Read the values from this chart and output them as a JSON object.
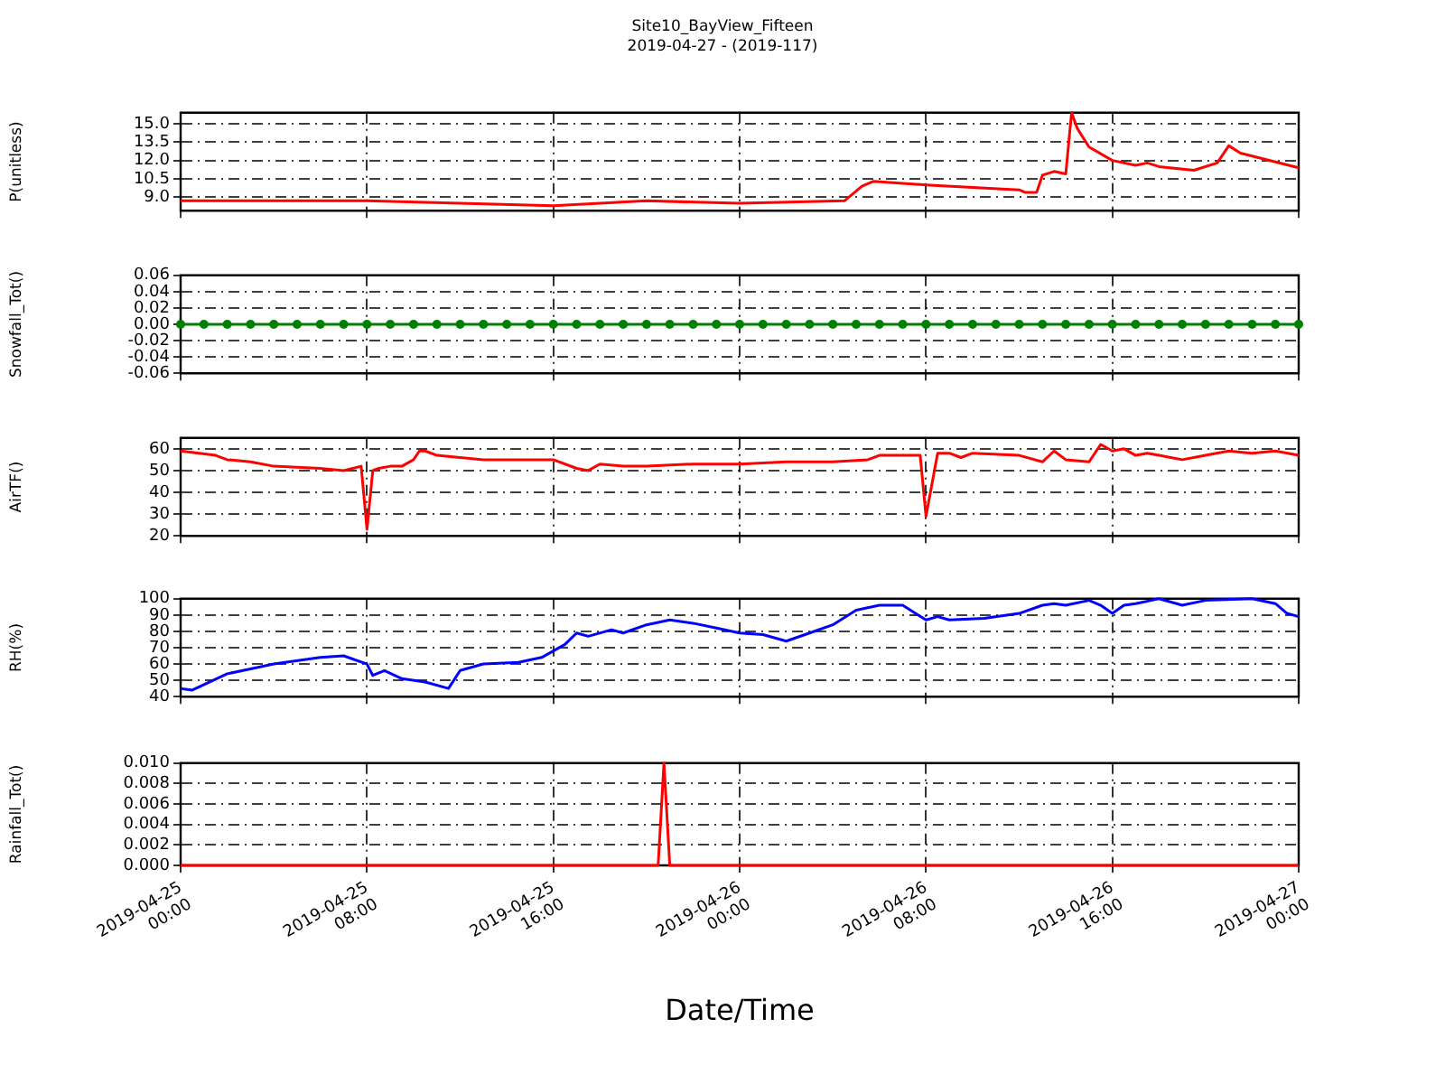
{
  "chart_data": [
    {
      "type": "line",
      "title": "Site10_BayView_Fifteen",
      "subtitle": "2019-04-27 - (2019-117)",
      "ylabel": "P(unitless)",
      "color": "#ff0000",
      "marker": "none",
      "line_style": "solid",
      "grid": true,
      "legend": false,
      "tick_labels": "y",
      "x": [
        "2019-04-25T00:00",
        "2019-04-25T08:00",
        "2019-04-25T12:00",
        "2019-04-25T16:00",
        "2019-04-25T20:00",
        "2019-04-26T00:00",
        "2019-04-26T04:30",
        "2019-04-26T05:15",
        "2019-04-26T05:45",
        "2019-04-26T08:00",
        "2019-04-26T12:00",
        "2019-04-26T12:15",
        "2019-04-26T12:45",
        "2019-04-26T13:00",
        "2019-04-26T13:30",
        "2019-04-26T14:00",
        "2019-04-26T14:15",
        "2019-04-26T14:30",
        "2019-04-26T15:00",
        "2019-04-26T16:00",
        "2019-04-26T17:00",
        "2019-04-26T17:30",
        "2019-04-26T18:00",
        "2019-04-26T19:30",
        "2019-04-26T20:30",
        "2019-04-26T21:00",
        "2019-04-26T21:30",
        "2019-04-27T00:00"
      ],
      "values": [
        8.7,
        8.7,
        8.5,
        8.3,
        8.7,
        8.5,
        8.7,
        9.9,
        10.3,
        10.0,
        9.6,
        9.4,
        9.4,
        10.8,
        11.1,
        10.9,
        15.9,
        14.6,
        13.1,
        12.0,
        11.6,
        11.8,
        11.5,
        11.2,
        11.8,
        13.2,
        12.6,
        11.4
      ],
      "xlim": [
        "2019-04-25T00:00",
        "2019-04-27T00:00"
      ],
      "xticks": [
        {
          "value": "2019-04-25T00:00",
          "label": null
        },
        {
          "value": "2019-04-25T08:00",
          "label": null
        },
        {
          "value": "2019-04-25T16:00",
          "label": null
        },
        {
          "value": "2019-04-26T00:00",
          "label": null
        },
        {
          "value": "2019-04-26T08:00",
          "label": null
        },
        {
          "value": "2019-04-26T16:00",
          "label": null
        },
        {
          "value": "2019-04-27T00:00",
          "label": null
        }
      ],
      "ylim": [
        7.9,
        15.9
      ],
      "yticks": [
        {
          "value": 9,
          "label": "9.0"
        },
        10.5,
        {
          "value": 12,
          "label": "12.0"
        },
        13.5,
        {
          "value": 15,
          "label": "15.0"
        }
      ]
    },
    {
      "type": "line",
      "ylabel": "Snowfall_Tot()",
      "color": "#008000",
      "marker": "circle",
      "line_style": "solid",
      "grid": true,
      "legend": false,
      "tick_labels": "y",
      "x": [
        "2019-04-25T00:00",
        "2019-04-25T01:00",
        "2019-04-25T02:00",
        "2019-04-25T03:00",
        "2019-04-25T04:00",
        "2019-04-25T05:00",
        "2019-04-25T06:00",
        "2019-04-25T07:00",
        "2019-04-25T08:00",
        "2019-04-25T09:00",
        "2019-04-25T10:00",
        "2019-04-25T11:00",
        "2019-04-25T12:00",
        "2019-04-25T13:00",
        "2019-04-25T14:00",
        "2019-04-25T15:00",
        "2019-04-25T16:00",
        "2019-04-25T17:00",
        "2019-04-25T18:00",
        "2019-04-25T19:00",
        "2019-04-25T20:00",
        "2019-04-25T21:00",
        "2019-04-25T22:00",
        "2019-04-25T23:00",
        "2019-04-26T00:00",
        "2019-04-26T01:00",
        "2019-04-26T02:00",
        "2019-04-26T03:00",
        "2019-04-26T04:00",
        "2019-04-26T05:00",
        "2019-04-26T06:00",
        "2019-04-26T07:00",
        "2019-04-26T08:00",
        "2019-04-26T09:00",
        "2019-04-26T10:00",
        "2019-04-26T11:00",
        "2019-04-26T12:00",
        "2019-04-26T13:00",
        "2019-04-26T14:00",
        "2019-04-26T15:00",
        "2019-04-26T16:00",
        "2019-04-26T17:00",
        "2019-04-26T18:00",
        "2019-04-26T19:00",
        "2019-04-26T20:00",
        "2019-04-26T21:00",
        "2019-04-26T22:00",
        "2019-04-26T23:00",
        "2019-04-27T00:00"
      ],
      "values": [
        0,
        0,
        0,
        0,
        0,
        0,
        0,
        0,
        0,
        0,
        0,
        0,
        0,
        0,
        0,
        0,
        0,
        0,
        0,
        0,
        0,
        0,
        0,
        0,
        0,
        0,
        0,
        0,
        0,
        0,
        0,
        0,
        0,
        0,
        0,
        0,
        0,
        0,
        0,
        0,
        0,
        0,
        0,
        0,
        0,
        0,
        0,
        0,
        0
      ],
      "xlim": [
        "2019-04-25T00:00",
        "2019-04-27T00:00"
      ],
      "xticks": [
        {
          "value": "2019-04-25T00:00",
          "label": null
        },
        {
          "value": "2019-04-25T08:00",
          "label": null
        },
        {
          "value": "2019-04-25T16:00",
          "label": null
        },
        {
          "value": "2019-04-26T00:00",
          "label": null
        },
        {
          "value": "2019-04-26T08:00",
          "label": null
        },
        {
          "value": "2019-04-26T16:00",
          "label": null
        },
        {
          "value": "2019-04-27T00:00",
          "label": null
        }
      ],
      "ylim": [
        -0.06,
        0.06
      ],
      "yticks": [
        -0.06,
        -0.04,
        -0.02,
        {
          "value": 0,
          "label": "0.00"
        },
        0.02,
        0.04,
        0.06
      ]
    },
    {
      "type": "line",
      "ylabel": "AirTF()",
      "color": "#ff0000",
      "marker": "none",
      "line_style": "solid",
      "grid": true,
      "legend": false,
      "tick_labels": "y",
      "x": [
        "2019-04-25T00:00",
        "2019-04-25T01:30",
        "2019-04-25T02:00",
        "2019-04-25T03:00",
        "2019-04-25T04:00",
        "2019-04-25T06:00",
        "2019-04-25T07:00",
        "2019-04-25T07:45",
        "2019-04-25T08:00",
        "2019-04-25T08:15",
        "2019-04-25T08:30",
        "2019-04-25T09:00",
        "2019-04-25T09:30",
        "2019-04-25T10:00",
        "2019-04-25T10:15",
        "2019-04-25T10:30",
        "2019-04-25T11:00",
        "2019-04-25T12:00",
        "2019-04-25T13:00",
        "2019-04-25T15:00",
        "2019-04-25T16:00",
        "2019-04-25T17:00",
        "2019-04-25T17:30",
        "2019-04-25T18:00",
        "2019-04-25T19:00",
        "2019-04-25T20:00",
        "2019-04-25T22:00",
        "2019-04-26T00:00",
        "2019-04-26T02:00",
        "2019-04-26T04:00",
        "2019-04-26T05:30",
        "2019-04-26T06:00",
        "2019-04-26T07:45",
        "2019-04-26T08:00",
        "2019-04-26T08:30",
        "2019-04-26T09:00",
        "2019-04-26T09:30",
        "2019-04-26T10:00",
        "2019-04-26T12:00",
        "2019-04-26T13:00",
        "2019-04-26T13:30",
        "2019-04-26T14:00",
        "2019-04-26T15:00",
        "2019-04-26T15:30",
        "2019-04-26T16:00",
        "2019-04-26T16:30",
        "2019-04-26T17:00",
        "2019-04-26T17:30",
        "2019-04-26T18:00",
        "2019-04-26T19:00",
        "2019-04-26T20:00",
        "2019-04-26T21:00",
        "2019-04-26T22:00",
        "2019-04-26T23:00",
        "2019-04-27T00:00"
      ],
      "values": [
        59,
        57,
        55,
        54,
        52,
        51,
        50,
        52,
        23,
        50,
        51,
        52,
        52,
        55,
        59,
        59,
        57,
        56,
        55,
        55,
        55,
        51,
        50,
        53,
        52,
        52,
        53,
        53,
        54,
        54,
        55,
        57,
        57,
        29,
        58,
        58,
        56,
        58,
        57,
        54,
        59,
        55,
        54,
        62,
        59,
        60,
        57,
        58,
        57,
        55,
        57,
        59,
        58,
        59,
        57
      ],
      "xlim": [
        "2019-04-25T00:00",
        "2019-04-27T00:00"
      ],
      "xticks": [
        {
          "value": "2019-04-25T00:00",
          "label": null
        },
        {
          "value": "2019-04-25T08:00",
          "label": null
        },
        {
          "value": "2019-04-25T16:00",
          "label": null
        },
        {
          "value": "2019-04-26T00:00",
          "label": null
        },
        {
          "value": "2019-04-26T08:00",
          "label": null
        },
        {
          "value": "2019-04-26T16:00",
          "label": null
        },
        {
          "value": "2019-04-27T00:00",
          "label": null
        }
      ],
      "ylim": [
        20,
        65
      ],
      "yticks": [
        20,
        30,
        40,
        50,
        60
      ]
    },
    {
      "type": "line",
      "ylabel": "RH(%)",
      "color": "#0000ff",
      "marker": "none",
      "line_style": "solid",
      "grid": true,
      "legend": false,
      "tick_labels": "y",
      "x": [
        "2019-04-25T00:00",
        "2019-04-25T00:30",
        "2019-04-25T02:00",
        "2019-04-25T03:00",
        "2019-04-25T04:00",
        "2019-04-25T06:00",
        "2019-04-25T07:00",
        "2019-04-25T08:00",
        "2019-04-25T08:15",
        "2019-04-25T08:45",
        "2019-04-25T09:30",
        "2019-04-25T10:30",
        "2019-04-25T11:30",
        "2019-04-25T12:00",
        "2019-04-25T13:00",
        "2019-04-25T14:30",
        "2019-04-25T15:30",
        "2019-04-25T16:30",
        "2019-04-25T17:00",
        "2019-04-25T17:30",
        "2019-04-25T18:30",
        "2019-04-25T19:00",
        "2019-04-25T20:00",
        "2019-04-25T21:00",
        "2019-04-25T22:00",
        "2019-04-25T23:00",
        "2019-04-26T00:00",
        "2019-04-26T01:00",
        "2019-04-26T02:00",
        "2019-04-26T03:00",
        "2019-04-26T04:00",
        "2019-04-26T05:00",
        "2019-04-26T06:00",
        "2019-04-26T07:00",
        "2019-04-26T08:00",
        "2019-04-26T08:30",
        "2019-04-26T09:00",
        "2019-04-26T10:30",
        "2019-04-26T12:00",
        "2019-04-26T13:00",
        "2019-04-26T13:30",
        "2019-04-26T14:00",
        "2019-04-26T15:00",
        "2019-04-26T15:30",
        "2019-04-26T16:00",
        "2019-04-26T16:30",
        "2019-04-26T17:00",
        "2019-04-26T18:00",
        "2019-04-26T19:00",
        "2019-04-26T20:00",
        "2019-04-26T22:00",
        "2019-04-26T23:00",
        "2019-04-26T23:30",
        "2019-04-27T00:00"
      ],
      "values": [
        45,
        44,
        54,
        57,
        60,
        64,
        65,
        60,
        53,
        56,
        51,
        49,
        45,
        56,
        60,
        61,
        64,
        72,
        79,
        77,
        81,
        79,
        84,
        87,
        85,
        82,
        79,
        78,
        74,
        79,
        84,
        93,
        96,
        96,
        87,
        89,
        87,
        88,
        91,
        96,
        97,
        96,
        99,
        96,
        91,
        96,
        97,
        100,
        96,
        99,
        100,
        97,
        91,
        89
      ],
      "xlim": [
        "2019-04-25T00:00",
        "2019-04-27T00:00"
      ],
      "xticks": [
        {
          "value": "2019-04-25T00:00",
          "label": null
        },
        {
          "value": "2019-04-25T08:00",
          "label": null
        },
        {
          "value": "2019-04-25T16:00",
          "label": null
        },
        {
          "value": "2019-04-26T00:00",
          "label": null
        },
        {
          "value": "2019-04-26T08:00",
          "label": null
        },
        {
          "value": "2019-04-26T16:00",
          "label": null
        },
        {
          "value": "2019-04-27T00:00",
          "label": null
        }
      ],
      "ylim": [
        40,
        100
      ],
      "yticks": [
        40,
        50,
        60,
        70,
        80,
        90,
        100
      ]
    },
    {
      "type": "line",
      "ylabel": "Rainfall_Tot()",
      "xlabel": "Date/Time",
      "color": "#ff0000",
      "marker": "none",
      "line_style": "solid",
      "grid": true,
      "legend": false,
      "x": [
        "2019-04-25T00:00",
        "2019-04-25T20:30",
        "2019-04-25T20:45",
        "2019-04-25T21:00",
        "2019-04-27T00:00"
      ],
      "values": [
        0,
        0,
        0.01,
        0,
        0
      ],
      "xlim": [
        "2019-04-25T00:00",
        "2019-04-27T00:00"
      ],
      "xticks": [
        {
          "value": "2019-04-25T00:00",
          "label": "2019-04-25\n00:00"
        },
        {
          "value": "2019-04-25T08:00",
          "label": "2019-04-25\n08:00"
        },
        {
          "value": "2019-04-25T16:00",
          "label": "2019-04-25\n16:00"
        },
        {
          "value": "2019-04-26T00:00",
          "label": "2019-04-26\n00:00"
        },
        {
          "value": "2019-04-26T08:00",
          "label": "2019-04-26\n08:00"
        },
        {
          "value": "2019-04-26T16:00",
          "label": "2019-04-26\n16:00"
        },
        {
          "value": "2019-04-27T00:00",
          "label": "2019-04-27\n00:00"
        }
      ],
      "ylim": [
        0,
        0.01
      ],
      "yticks": [
        {
          "value": 0,
          "label": "0.000"
        },
        0.002,
        0.004,
        0.006,
        0.008,
        {
          "value": 0.01,
          "label": "0.010"
        }
      ]
    }
  ]
}
